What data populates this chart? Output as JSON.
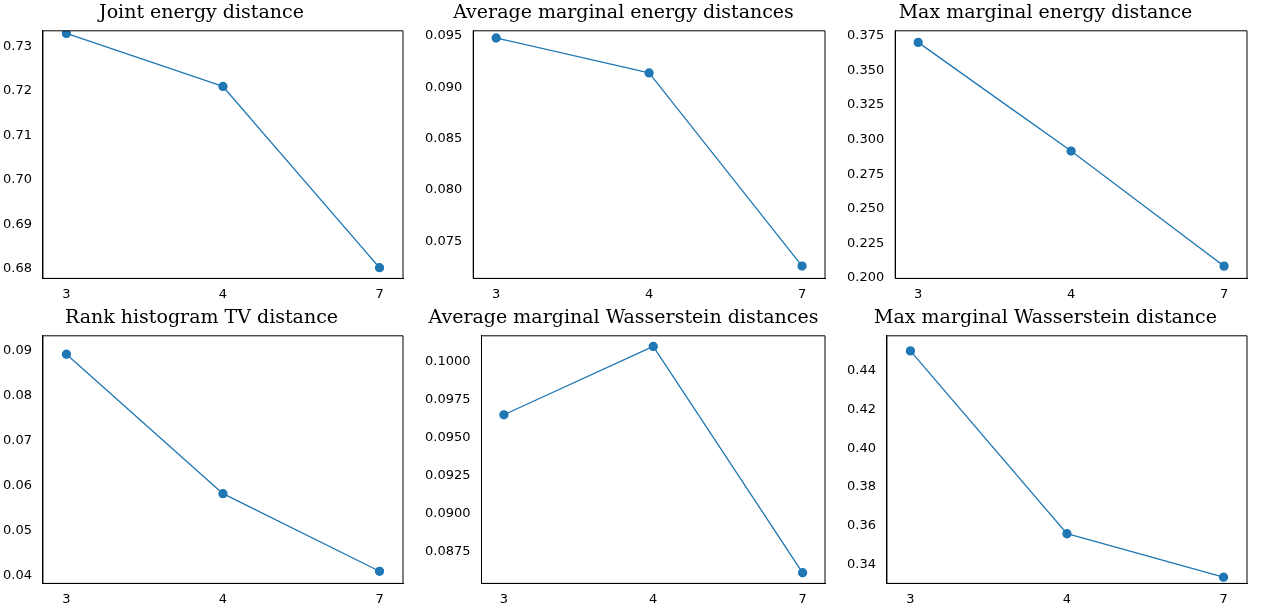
{
  "chart_data": [
    {
      "type": "line",
      "title": "Joint energy distance",
      "categories": [
        "3",
        "4",
        "7"
      ],
      "series": [
        {
          "color": "#1f77b4",
          "values": [
            0.7329,
            0.721,
            0.6803
          ]
        }
      ],
      "ylim": [
        0.6779,
        0.7335
      ],
      "yticks": [
        {
          "value": 0.68,
          "label": "0.68"
        },
        {
          "value": 0.69,
          "label": "0.69"
        },
        {
          "value": 0.7,
          "label": "0.70"
        },
        {
          "value": 0.71,
          "label": "0.71"
        },
        {
          "value": 0.72,
          "label": "0.72"
        },
        {
          "value": 0.73,
          "label": "0.73"
        }
      ],
      "marker": "circle",
      "grid": false,
      "legend": false
    },
    {
      "type": "line",
      "title": "Average marginal energy distances",
      "categories": [
        "3",
        "4",
        "7"
      ],
      "series": [
        {
          "color": "#1f77b4",
          "values": [
            0.0948,
            0.0914,
            0.0726
          ]
        }
      ],
      "ylim": [
        0.0714,
        0.0955
      ],
      "yticks": [
        {
          "value": 0.075,
          "label": "0.075"
        },
        {
          "value": 0.08,
          "label": "0.080"
        },
        {
          "value": 0.085,
          "label": "0.085"
        },
        {
          "value": 0.09,
          "label": "0.090"
        },
        {
          "value": 0.095,
          "label": "0.095"
        }
      ],
      "marker": "circle",
      "grid": false,
      "legend": false
    },
    {
      "type": "line",
      "title": "Max marginal energy distance",
      "categories": [
        "3",
        "4",
        "7"
      ],
      "series": [
        {
          "color": "#1f77b4",
          "values": [
            0.3704,
            0.2917,
            0.2084
          ]
        }
      ],
      "ylim": [
        0.1995,
        0.3788
      ],
      "yticks": [
        {
          "value": 0.2,
          "label": "0.200"
        },
        {
          "value": 0.225,
          "label": "0.225"
        },
        {
          "value": 0.25,
          "label": "0.250"
        },
        {
          "value": 0.275,
          "label": "0.275"
        },
        {
          "value": 0.3,
          "label": "0.300"
        },
        {
          "value": 0.325,
          "label": "0.325"
        },
        {
          "value": 0.35,
          "label": "0.350"
        },
        {
          "value": 0.375,
          "label": "0.375"
        }
      ],
      "marker": "circle",
      "grid": false,
      "legend": false
    },
    {
      "type": "line",
      "title": "Rank histogram TV distance",
      "categories": [
        "3",
        "4",
        "7"
      ],
      "series": [
        {
          "color": "#1f77b4",
          "values": [
            0.0893,
            0.0582,
            0.0409
          ]
        }
      ],
      "ylim": [
        0.0382,
        0.0934
      ],
      "yticks": [
        {
          "value": 0.04,
          "label": "0.04"
        },
        {
          "value": 0.05,
          "label": "0.05"
        },
        {
          "value": 0.06,
          "label": "0.06"
        },
        {
          "value": 0.07,
          "label": "0.07"
        },
        {
          "value": 0.08,
          "label": "0.08"
        },
        {
          "value": 0.09,
          "label": "0.09"
        }
      ],
      "marker": "circle",
      "grid": false,
      "legend": false
    },
    {
      "type": "line",
      "title": "Average marginal Wasserstein distances",
      "categories": [
        "3",
        "4",
        "7"
      ],
      "series": [
        {
          "color": "#1f77b4",
          "values": [
            0.0965,
            0.101,
            0.0861
          ]
        }
      ],
      "ylim": [
        0.0854,
        0.1017
      ],
      "yticks": [
        {
          "value": 0.0875,
          "label": "0.0875"
        },
        {
          "value": 0.09,
          "label": "0.0900"
        },
        {
          "value": 0.0925,
          "label": "0.0925"
        },
        {
          "value": 0.095,
          "label": "0.0950"
        },
        {
          "value": 0.0975,
          "label": "0.0975"
        },
        {
          "value": 0.1,
          "label": "0.1000"
        }
      ],
      "marker": "circle",
      "grid": false,
      "legend": false
    },
    {
      "type": "line",
      "title": "Max marginal Wasserstein distance",
      "categories": [
        "3",
        "4",
        "7"
      ],
      "series": [
        {
          "color": "#1f77b4",
          "values": [
            0.4504,
            0.3558,
            0.3333
          ]
        }
      ],
      "ylim": [
        0.3301,
        0.4582
      ],
      "yticks": [
        {
          "value": 0.34,
          "label": "0.34"
        },
        {
          "value": 0.36,
          "label": "0.36"
        },
        {
          "value": 0.38,
          "label": "0.38"
        },
        {
          "value": 0.4,
          "label": "0.40"
        },
        {
          "value": 0.42,
          "label": "0.42"
        },
        {
          "value": 0.44,
          "label": "0.44"
        }
      ],
      "marker": "circle",
      "grid": false,
      "legend": false
    }
  ]
}
